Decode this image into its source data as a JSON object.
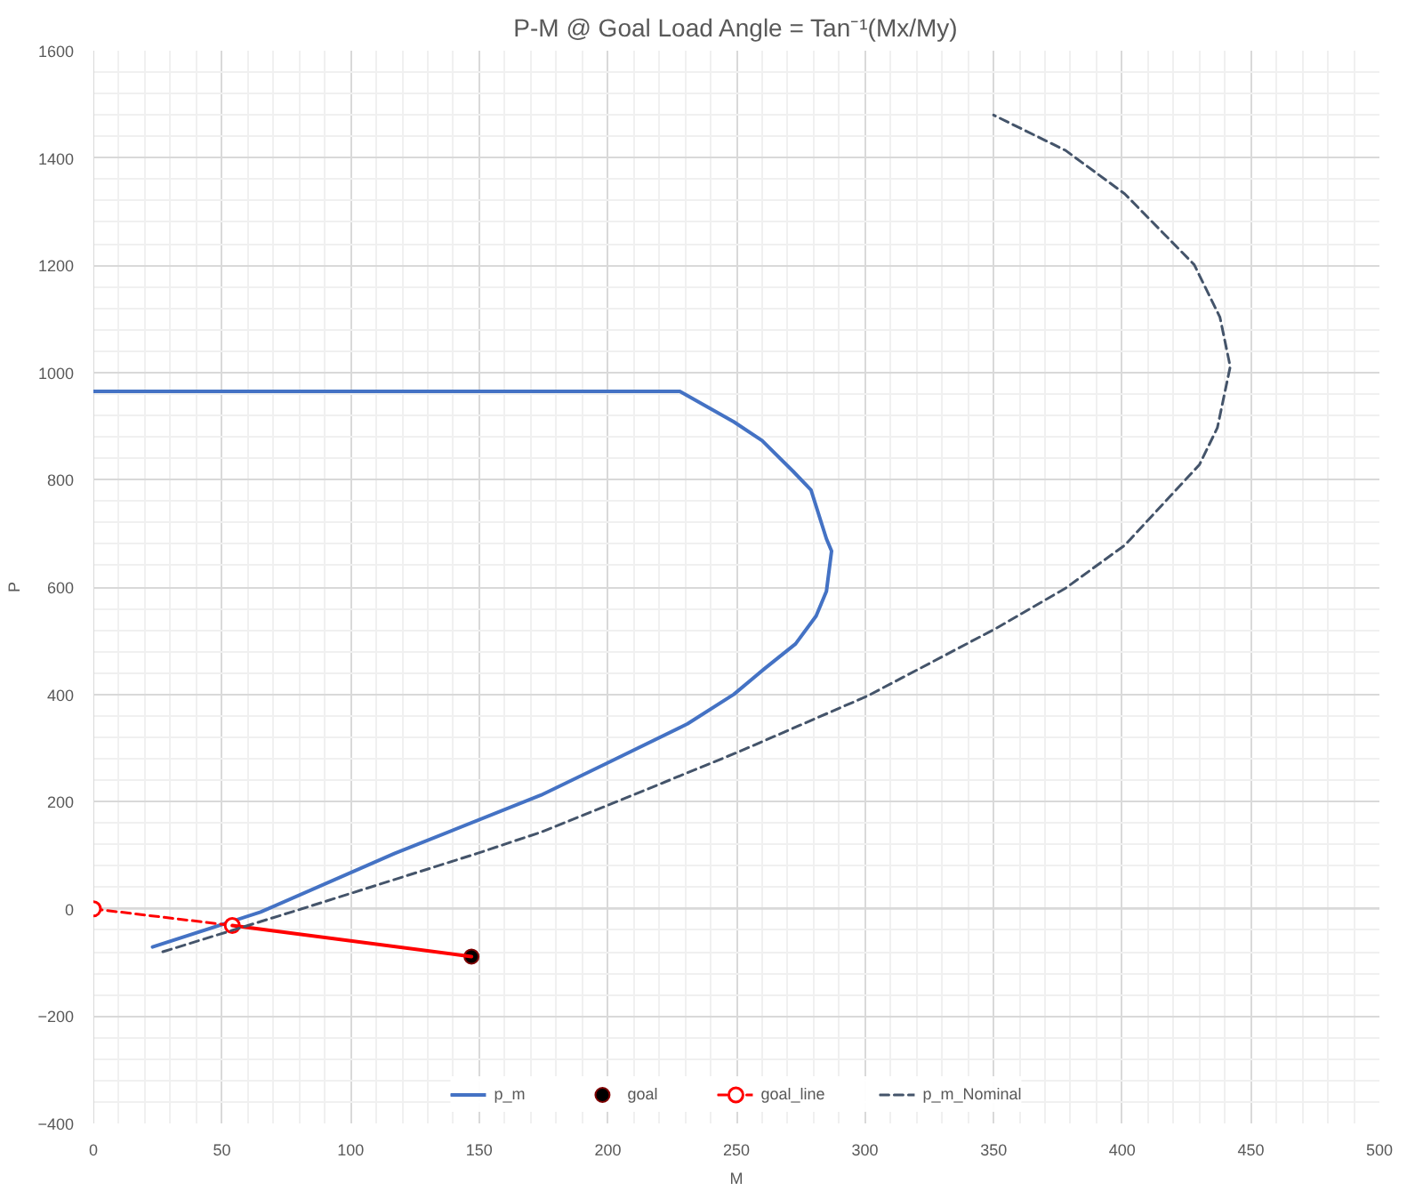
{
  "chart_data": {
    "type": "line",
    "title": "P-M @ Goal Load Angle = Tan⁻¹(Mx/My)",
    "xlabel": "M",
    "ylabel": "P",
    "xlim": [
      0,
      500
    ],
    "xticks": [
      0,
      50,
      100,
      150,
      200,
      250,
      300,
      350,
      400,
      450,
      500
    ],
    "ylim": [
      -400,
      1600
    ],
    "yticks": [
      -400,
      -200,
      0,
      200,
      400,
      600,
      800,
      1000,
      1200,
      1400,
      1600
    ],
    "grid": true,
    "legend": "bottom",
    "series": [
      {
        "name": "p_m",
        "color": "#4472c4",
        "line_style": "solid",
        "marker": "none",
        "x": [
          23,
          65,
          117,
          174,
          199,
          231,
          249,
          261,
          273,
          281,
          285,
          287,
          285,
          279,
          272,
          260,
          249,
          228,
          0
        ],
        "values": [
          -71,
          -6,
          103,
          212,
          270,
          345,
          400,
          448,
          494,
          546,
          592,
          667,
          690,
          781,
          816,
          873,
          908,
          965,
          965
        ]
      },
      {
        "name": "goal",
        "type": "scatter",
        "color": "#000000",
        "marker": "circle",
        "x": [
          147
        ],
        "values": [
          -89
        ]
      },
      {
        "name": "goal_line",
        "color": "#ff0000",
        "line_style": "dashed",
        "marker": "circle",
        "x": [
          0,
          54
        ],
        "values": [
          0,
          -31
        ]
      },
      {
        "color": "#ff0000",
        "line_style": "solid",
        "marker": "none",
        "x": [
          54,
          147
        ],
        "values": [
          -31,
          -89
        ]
      },
      {
        "name": "p_m_Nominal",
        "color": "#44546a",
        "line_style": "dashed",
        "marker": "none",
        "x": [
          27,
          81,
          149,
          174,
          201,
          251,
          301,
          351,
          378,
          401,
          430,
          437,
          442,
          438,
          428,
          401,
          378,
          350
        ],
        "values": [
          -80,
          0,
          103,
          143,
          195,
          293,
          397,
          523,
          598,
          678,
          828,
          897,
          1011,
          1103,
          1201,
          1333,
          1414,
          1480
        ]
      }
    ]
  }
}
